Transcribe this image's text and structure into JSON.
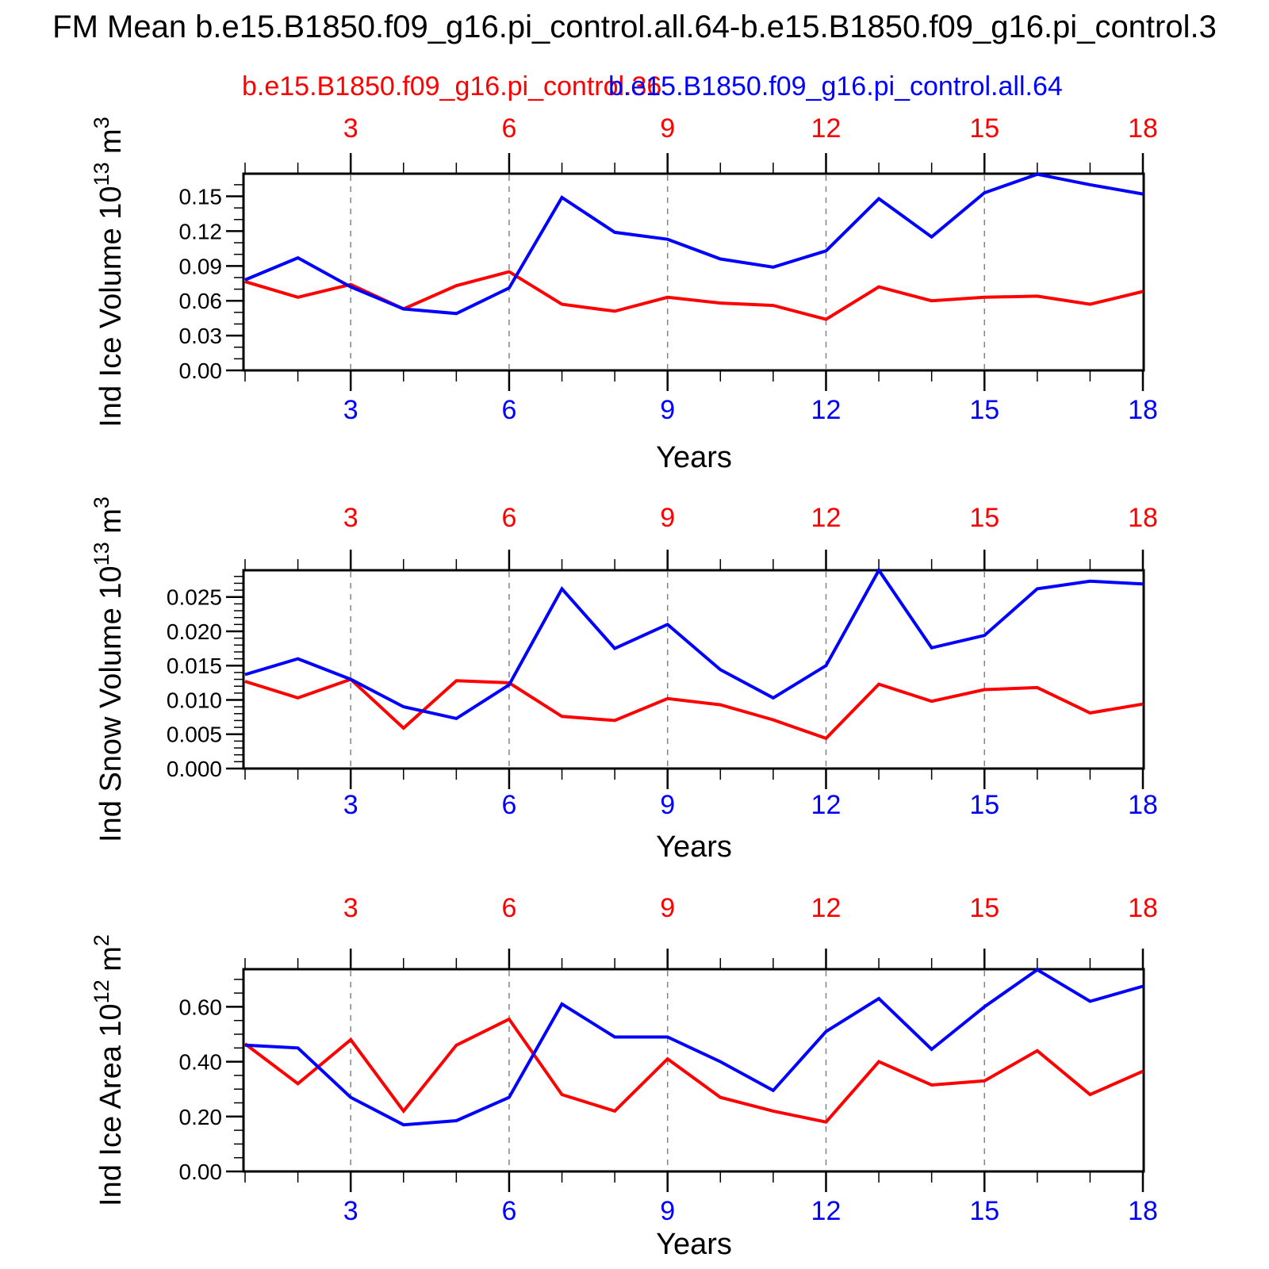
{
  "title": "FM Mean b.e15.B1850.f09_g16.pi_control.all.64-b.e15.B1850.f09_g16.pi_control.3",
  "legend": {
    "red": "b.e15.B1850.f09_g16.pi_control.36",
    "blue": "b.e15.B1850.f09_g16.pi_control.all.64"
  },
  "colors": {
    "red": "#ff0000",
    "blue": "#0000ff",
    "frame": "#000000",
    "grid": "#848484",
    "text": "#000000"
  },
  "xaxis": {
    "label": "Years",
    "range": [
      1,
      18
    ],
    "major_ticks": [
      3,
      6,
      9,
      12,
      15,
      18
    ],
    "minor_tick_step": 1,
    "gridline_years": [
      3,
      6,
      9,
      12,
      15
    ]
  },
  "chart_data": [
    {
      "type": "line",
      "panel": "ind-ice-volume",
      "ylabel_parts": [
        {
          "t": "Ind Ice Volume 10"
        },
        {
          "t": "13",
          "sup": true
        },
        {
          "t": " m"
        },
        {
          "t": "3",
          "sup": true
        }
      ],
      "ylim": [
        0,
        0.1695
      ],
      "ytick_labels": [
        "0.00",
        "0.03",
        "0.06",
        "0.09",
        "0.12",
        "0.15"
      ],
      "ytick_values": [
        0,
        0.03,
        0.06,
        0.09,
        0.12,
        0.15
      ],
      "minor_step": 0.01,
      "x": [
        1,
        2,
        3,
        4,
        5,
        6,
        7,
        8,
        9,
        10,
        11,
        12,
        13,
        14,
        15,
        16,
        17,
        18
      ],
      "series": [
        {
          "name": "b.e15.B1850.f09_g16.pi_control.36",
          "color": "#ff0000",
          "values": [
            0.0765,
            0.063,
            0.074,
            0.053,
            0.073,
            0.085,
            0.057,
            0.051,
            0.063,
            0.058,
            0.056,
            0.044,
            0.072,
            0.06,
            0.063,
            0.064,
            0.057,
            0.068
          ]
        },
        {
          "name": "b.e15.B1850.f09_g16.pi_control.all.64",
          "color": "#0000ff",
          "values": [
            0.078,
            0.097,
            0.072,
            0.053,
            0.049,
            0.071,
            0.149,
            0.119,
            0.113,
            0.096,
            0.089,
            0.103,
            0.148,
            0.115,
            0.153,
            0.169,
            0.16,
            0.152
          ]
        }
      ]
    },
    {
      "type": "line",
      "panel": "ind-snow-volume",
      "ylabel_parts": [
        {
          "t": "Ind Snow Volume 10"
        },
        {
          "t": "13",
          "sup": true
        },
        {
          "t": " m"
        },
        {
          "t": "3",
          "sup": true
        }
      ],
      "ylim": [
        0,
        0.0289
      ],
      "ytick_labels": [
        "0.000",
        "0.005",
        "0.010",
        "0.015",
        "0.020",
        "0.025"
      ],
      "ytick_values": [
        0,
        0.005,
        0.01,
        0.015,
        0.02,
        0.025
      ],
      "minor_step": 0.001,
      "x": [
        1,
        2,
        3,
        4,
        5,
        6,
        7,
        8,
        9,
        10,
        11,
        12,
        13,
        14,
        15,
        16,
        17,
        18
      ],
      "series": [
        {
          "name": "b.e15.B1850.f09_g16.pi_control.36",
          "color": "#ff0000",
          "values": [
            0.0127,
            0.0103,
            0.013,
            0.0059,
            0.0128,
            0.0125,
            0.0076,
            0.007,
            0.0102,
            0.0093,
            0.0071,
            0.0044,
            0.0123,
            0.0098,
            0.0115,
            0.0118,
            0.0081,
            0.0094
          ]
        },
        {
          "name": "b.e15.B1850.f09_g16.pi_control.all.64",
          "color": "#0000ff",
          "values": [
            0.0137,
            0.016,
            0.013,
            0.009,
            0.0073,
            0.0122,
            0.0262,
            0.0175,
            0.021,
            0.0144,
            0.0103,
            0.015,
            0.0289,
            0.0176,
            0.0194,
            0.0262,
            0.0273,
            0.0269
          ]
        }
      ]
    },
    {
      "type": "line",
      "panel": "ind-ice-area",
      "ylabel_parts": [
        {
          "t": "Ind Ice Area 10"
        },
        {
          "t": "12",
          "sup": true
        },
        {
          "t": " m"
        },
        {
          "t": "2",
          "sup": true
        }
      ],
      "ylim": [
        0,
        0.737
      ],
      "ytick_labels": [
        "0.00",
        "0.20",
        "0.40",
        "0.60"
      ],
      "ytick_values": [
        0,
        0.2,
        0.4,
        0.6
      ],
      "minor_step": 0.05,
      "x": [
        1,
        2,
        3,
        4,
        5,
        6,
        7,
        8,
        9,
        10,
        11,
        12,
        13,
        14,
        15,
        16,
        17,
        18
      ],
      "series": [
        {
          "name": "b.e15.B1850.f09_g16.pi_control.36",
          "color": "#ff0000",
          "values": [
            0.465,
            0.32,
            0.48,
            0.22,
            0.46,
            0.555,
            0.28,
            0.22,
            0.41,
            0.27,
            0.22,
            0.18,
            0.4,
            0.315,
            0.33,
            0.44,
            0.28,
            0.365
          ]
        },
        {
          "name": "b.e15.B1850.f09_g16.pi_control.all.64",
          "color": "#0000ff",
          "values": [
            0.46,
            0.45,
            0.27,
            0.17,
            0.185,
            0.27,
            0.61,
            0.49,
            0.49,
            0.4,
            0.295,
            0.51,
            0.63,
            0.445,
            0.6,
            0.735,
            0.62,
            0.675
          ]
        }
      ]
    }
  ]
}
